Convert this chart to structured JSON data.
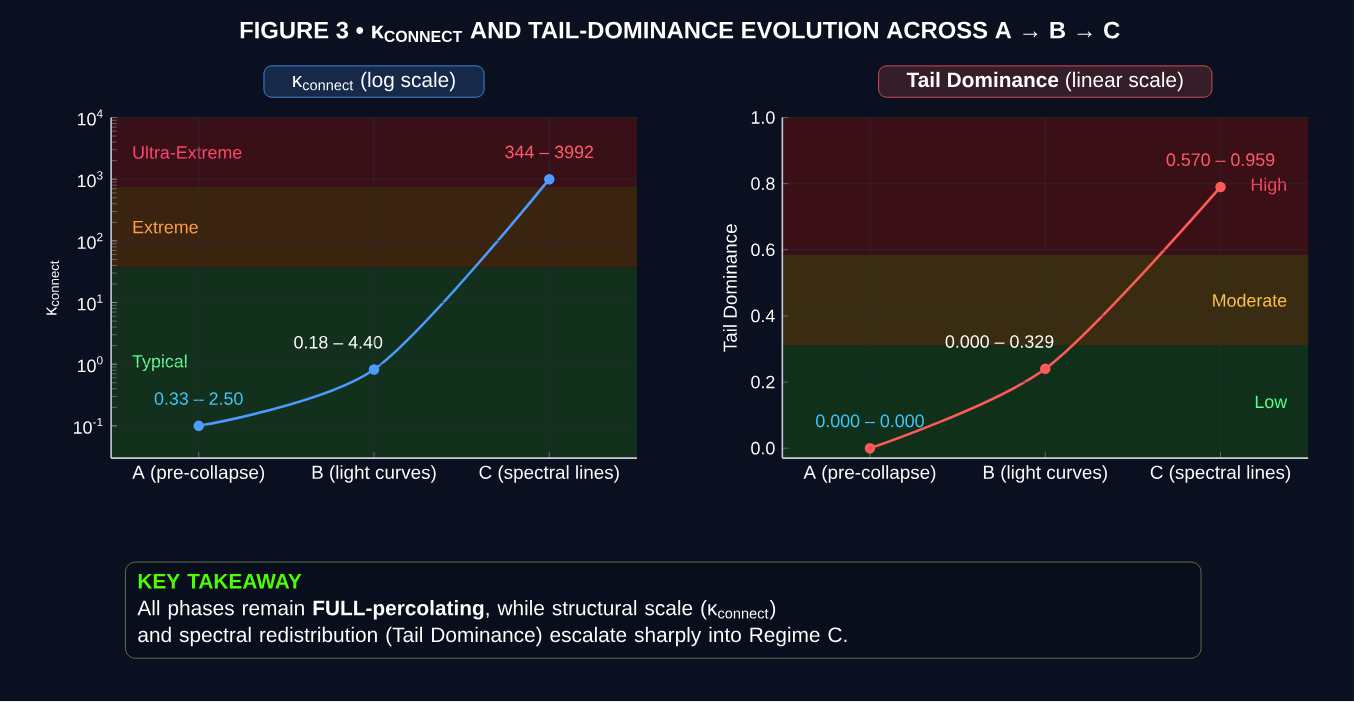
{
  "chart_data": [
    {
      "type": "line",
      "title": "κ$_{connect}$ (log scale)",
      "ylabel": "κ$_{connect}$",
      "annotations": [
        "FIGURE 3 • κ$_{CONNECT}$ AND TAIL-DOMINANCE EVOLUTION ACROSS A → B → C",
        {
          "text": "0.33 – 2.50",
          "x": "A (pre-collapse)",
          "y": 0.1
        },
        {
          "text": "0.18 – 4.40",
          "x": "B (light curves)",
          "y": 0.82
        },
        {
          "text": "344 – 3992",
          "x": "C (spectral lines)",
          "y": 1000
        }
      ],
      "categories": [
        "A (pre-collapse)",
        "B (light curves)",
        "C (spectral lines)"
      ],
      "series": [
        {
          "color": "#4a9cff",
          "colors": [
            "#3ec8ff",
            "#ffffff",
            "#ff5a6a"
          ],
          "values": [
            0.1,
            0.82,
            1000
          ]
        }
      ],
      "log": "y",
      "ylim": [
        0.03,
        10000
      ],
      "yticks": [
        {
          "value": 0.1,
          "label": "10$^{-1}$"
        },
        {
          "value": 1,
          "label": "10$^{0}$"
        },
        {
          "value": 10,
          "label": "10$^{1}$"
        },
        {
          "value": 100,
          "label": "10$^{2}$"
        },
        {
          "value": 1000,
          "label": "10$^{3}$"
        },
        {
          "value": 10000,
          "label": "10$^{4}$"
        }
      ],
      "bands": [
        {
          "axis": "y",
          "from": 750,
          "to": 10000,
          "label": "Ultra-Extreme",
          "color": "#3a1018"
        },
        {
          "axis": "y",
          "from": 37,
          "to": 750,
          "label": "Extreme",
          "color": "#3a2410"
        },
        {
          "axis": "y",
          "from": 0.03,
          "to": 37,
          "label": "Typical",
          "color": "#12301c"
        }
      ],
      "grid": true,
      "marker": "circle",
      "line_style": "solid"
    },
    {
      "type": "line",
      "title": "**Tail Dominance** (linear scale)",
      "ylabel": "Tail Dominance",
      "annotations": [
        "KEY TAKEAWAY",
        "All phases remain **FULL-percolating**, while structural scale (κ$_{connect}$)",
        "and spectral redistribution (Tail Dominance) escalate sharply into Regime C.",
        {
          "text": "0.000 – 0.000",
          "x": "A (pre-collapse)",
          "y": 0.0
        },
        {
          "text": "0.000 – 0.329",
          "x": "B (light curves)",
          "y": 0.24
        },
        {
          "text": "0.570 – 0.959",
          "x": "C (spectral lines)",
          "y": 0.79
        }
      ],
      "categories": [
        "A (pre-collapse)",
        "B (light curves)",
        "C (spectral lines)"
      ],
      "series": [
        {
          "color": "#ff5a5a",
          "colors": [
            "#3ec8ff",
            "#ffffff",
            "#ff5a6a"
          ],
          "values": [
            0.0,
            0.24,
            0.79
          ]
        }
      ],
      "ylim": [
        -0.03,
        1.0
      ],
      "yticks": [
        {
          "value": 0,
          "label": "0.0"
        },
        {
          "value": 0.2,
          "label": "0.2"
        },
        {
          "value": 0.4,
          "label": "0.4"
        },
        {
          "value": 0.6,
          "label": "0.6"
        },
        {
          "value": 0.8,
          "label": "0.8"
        },
        {
          "value": 1.0,
          "label": "1.0"
        }
      ],
      "bands": [
        {
          "axis": "y",
          "from": 0.585,
          "to": 1.0,
          "label": "High",
          "color": "#3a1016"
        },
        {
          "axis": "y",
          "from": 0.31,
          "to": 0.585,
          "label": "Moderate",
          "color": "#3a2c10"
        },
        {
          "axis": "y",
          "from": -0.03,
          "to": 0.31,
          "label": "Low",
          "color": "#10301a"
        }
      ],
      "grid": true,
      "marker": "circle",
      "line_style": "solid"
    }
  ]
}
